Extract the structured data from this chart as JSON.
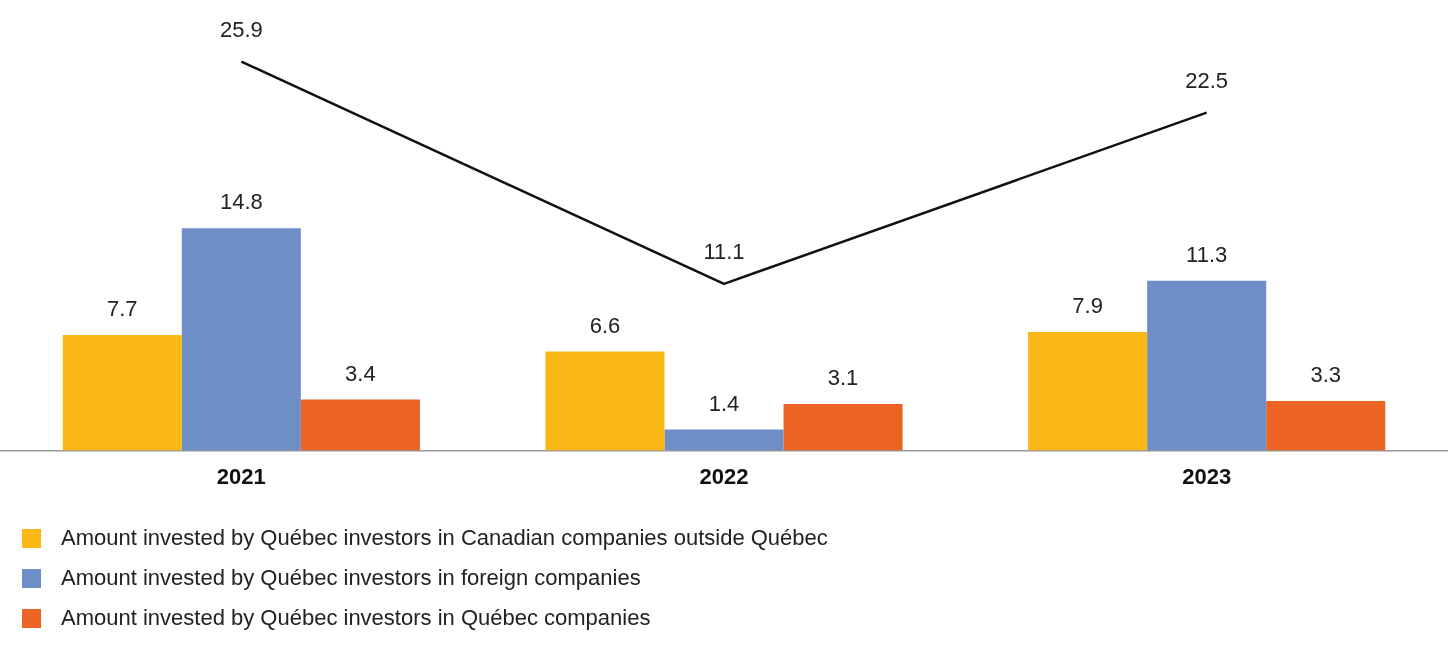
{
  "chart_data": {
    "type": "bar",
    "categories": [
      "2021",
      "2022",
      "2023"
    ],
    "series": [
      {
        "name": "Amount invested by Québec investors in Canadian companies outside Québec",
        "color": "#f9b814",
        "values": [
          7.7,
          6.6,
          7.9
        ]
      },
      {
        "name": "Amount invested by Québec investors in foreign companies",
        "color": "#6e8ec8",
        "values": [
          14.8,
          1.4,
          11.3
        ]
      },
      {
        "name": "Amount invested by Québec investors in Québec companies",
        "color": "#ec6424",
        "values": [
          3.4,
          3.1,
          3.3
        ]
      },
      {
        "type": "line",
        "color": "#111111",
        "values": [
          25.9,
          11.1,
          22.5
        ]
      }
    ],
    "tick_labels": "x",
    "data_labels": true,
    "legend": "bottom"
  }
}
